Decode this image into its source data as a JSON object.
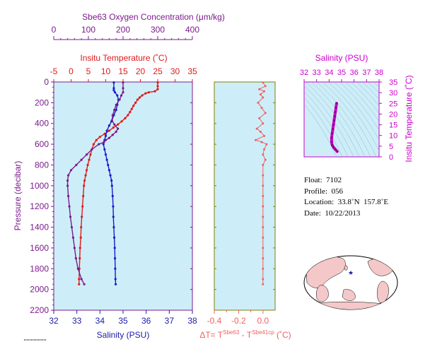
{
  "chart_data": [
    {
      "type": "line",
      "panel": "profile",
      "y_axis": {
        "label": "Pressure (decibar)",
        "lim": [
          0,
          2200
        ],
        "ticks": [
          0,
          200,
          400,
          600,
          800,
          1000,
          1200,
          1400,
          1600,
          1800,
          2000,
          2200
        ],
        "inverted": true
      },
      "oxygen_axis": {
        "label": "Sbe63 Oxygen Concentration (μm/kg)",
        "lim": [
          0,
          400
        ],
        "ticks": [
          0,
          100,
          200,
          300,
          400
        ],
        "color": "#7b1a8c"
      },
      "temperature_axis": {
        "label": "Insitu Temperature (˚C)",
        "lim": [
          -5,
          35
        ],
        "ticks": [
          -5,
          0,
          5,
          10,
          15,
          20,
          25,
          30,
          35
        ],
        "color": "#e01a1a"
      },
      "salinity_axis": {
        "label": "Salinity (PSU)",
        "lim": [
          32,
          38
        ],
        "ticks": [
          32,
          33,
          34,
          35,
          36,
          37,
          38
        ],
        "color": "#1a1aaa"
      },
      "background": "#cdeef8",
      "series": [
        {
          "variable": "temperature",
          "color": "#e01a1a",
          "points": [
            [
              25.0,
              5
            ],
            [
              25.0,
              40
            ],
            [
              25.0,
              70
            ],
            [
              24.2,
              90
            ],
            [
              22.4,
              100
            ],
            [
              21.5,
              110
            ],
            [
              20.5,
              130
            ],
            [
              19.8,
              150
            ],
            [
              19.2,
              170
            ],
            [
              18.6,
              200
            ],
            [
              18.0,
              230
            ],
            [
              17.5,
              260
            ],
            [
              17.0,
              290
            ],
            [
              16.4,
              320
            ],
            [
              15.6,
              350
            ],
            [
              14.6,
              380
            ],
            [
              13.5,
              410
            ],
            [
              12.2,
              440
            ],
            [
              11.0,
              470
            ],
            [
              9.7,
              500
            ],
            [
              8.3,
              530
            ],
            [
              7.3,
              560
            ],
            [
              6.5,
              600
            ],
            [
              6.0,
              650
            ],
            [
              5.6,
              700
            ],
            [
              5.2,
              750
            ],
            [
              4.8,
              800
            ],
            [
              4.5,
              850
            ],
            [
              4.2,
              900
            ],
            [
              3.9,
              950
            ],
            [
              3.7,
              1000
            ],
            [
              3.5,
              1100
            ],
            [
              3.3,
              1200
            ],
            [
              3.1,
              1300
            ],
            [
              2.9,
              1400
            ],
            [
              2.8,
              1500
            ],
            [
              2.6,
              1600
            ],
            [
              2.5,
              1700
            ],
            [
              2.4,
              1800
            ],
            [
              2.3,
              1900
            ],
            [
              2.3,
              1950
            ]
          ]
        },
        {
          "variable": "salinity",
          "color": "#1a1acc",
          "points": [
            [
              34.6,
              5
            ],
            [
              34.6,
              60
            ],
            [
              34.6,
              80
            ],
            [
              34.65,
              100
            ],
            [
              34.75,
              130
            ],
            [
              34.8,
              170
            ],
            [
              34.75,
              220
            ],
            [
              34.7,
              270
            ],
            [
              34.6,
              320
            ],
            [
              34.5,
              380
            ],
            [
              34.4,
              420
            ],
            [
              34.3,
              470
            ],
            [
              34.25,
              520
            ],
            [
              34.2,
              560
            ],
            [
              34.15,
              600
            ],
            [
              34.2,
              650
            ],
            [
              34.25,
              700
            ],
            [
              34.3,
              750
            ],
            [
              34.35,
              800
            ],
            [
              34.4,
              850
            ],
            [
              34.45,
              900
            ],
            [
              34.5,
              950
            ],
            [
              34.52,
              1000
            ],
            [
              34.55,
              1100
            ],
            [
              34.57,
              1200
            ],
            [
              34.58,
              1300
            ],
            [
              34.6,
              1400
            ],
            [
              34.62,
              1500
            ],
            [
              34.64,
              1600
            ],
            [
              34.65,
              1700
            ],
            [
              34.66,
              1800
            ],
            [
              34.67,
              1900
            ],
            [
              34.68,
              1950
            ]
          ]
        },
        {
          "variable": "oxygen",
          "color": "#7b1a8c",
          "points": [
            [
              200,
              5
            ],
            [
              200,
              60
            ],
            [
              200,
              100
            ],
            [
              195,
              130
            ],
            [
              190,
              170
            ],
            [
              180,
              220
            ],
            [
              175,
              270
            ],
            [
              170,
              320
            ],
            [
              168,
              370
            ],
            [
              175,
              410
            ],
            [
              185,
              450
            ],
            [
              180,
              480
            ],
            [
              170,
              510
            ],
            [
              160,
              540
            ],
            [
              150,
              560
            ],
            [
              145,
              580
            ],
            [
              130,
              600
            ],
            [
              110,
              650
            ],
            [
              95,
              700
            ],
            [
              80,
              750
            ],
            [
              65,
              800
            ],
            [
              50,
              850
            ],
            [
              42,
              900
            ],
            [
              40,
              950
            ],
            [
              40,
              1000
            ],
            [
              42,
              1100
            ],
            [
              45,
              1200
            ],
            [
              48,
              1300
            ],
            [
              52,
              1400
            ],
            [
              56,
              1500
            ],
            [
              60,
              1600
            ],
            [
              64,
              1700
            ],
            [
              70,
              1800
            ],
            [
              80,
              1900
            ],
            [
              88,
              1950
            ]
          ]
        }
      ]
    },
    {
      "type": "line",
      "panel": "delta",
      "xlabel": "ΔT= T^Sbe63 - T^Sbe41cp (˚C)",
      "xlabel_parts": {
        "main": "ΔT= T",
        "sup1": "Sbe63",
        "mid": " - T",
        "sup2": "Sbe41cp",
        "end": " (˚C)"
      },
      "xlim": [
        -0.4,
        0.1
      ],
      "xticks": [
        -0.4,
        -0.2,
        0.0
      ],
      "xticklabels": [
        "-0.4",
        "-0.2",
        "0.0"
      ],
      "color": "#f06060",
      "axis_color": "#808000",
      "points": [
        [
          0.0,
          5
        ],
        [
          0.02,
          40
        ],
        [
          -0.03,
          70
        ],
        [
          0.01,
          90
        ],
        [
          -0.02,
          120
        ],
        [
          0.0,
          150
        ],
        [
          -0.04,
          200
        ],
        [
          -0.01,
          250
        ],
        [
          0.02,
          300
        ],
        [
          -0.03,
          350
        ],
        [
          0.0,
          400
        ],
        [
          -0.05,
          450
        ],
        [
          -0.02,
          480
        ],
        [
          0.01,
          520
        ],
        [
          -0.06,
          560
        ],
        [
          -0.01,
          580
        ],
        [
          0.03,
          600
        ],
        [
          0.01,
          650
        ],
        [
          0.0,
          700
        ],
        [
          0.02,
          750
        ],
        [
          0.0,
          800
        ],
        [
          0.0,
          900
        ],
        [
          0.0,
          1000
        ],
        [
          0.0,
          1100
        ],
        [
          0.0,
          1200
        ],
        [
          0.0,
          1300
        ],
        [
          0.0,
          1400
        ],
        [
          0.0,
          1500
        ],
        [
          0.0,
          1600
        ],
        [
          0.0,
          1700
        ],
        [
          0.0,
          1800
        ],
        [
          0.0,
          1900
        ],
        [
          0.0,
          1950
        ]
      ]
    },
    {
      "type": "scatter",
      "panel": "ts",
      "xlabel": "Salinity (PSU)",
      "ylabel": "Insitu Temperature (˚C)",
      "xlim": [
        32,
        38
      ],
      "ylim": [
        0,
        35
      ],
      "xticks": [
        32,
        33,
        34,
        35,
        36,
        37,
        38
      ],
      "yticks": [
        0,
        5,
        10,
        15,
        20,
        25,
        30,
        35
      ],
      "color": "#cc00cc",
      "points": [
        [
          34.6,
          25
        ],
        [
          34.55,
          23
        ],
        [
          34.5,
          21
        ],
        [
          34.45,
          19
        ],
        [
          34.4,
          17
        ],
        [
          34.35,
          15
        ],
        [
          34.3,
          13
        ],
        [
          34.25,
          11
        ],
        [
          34.2,
          9
        ],
        [
          34.2,
          7
        ],
        [
          34.25,
          5.5
        ],
        [
          34.35,
          4.5
        ],
        [
          34.5,
          3.5
        ],
        [
          34.65,
          2.5
        ]
      ]
    }
  ],
  "float_info": {
    "float": "Float:  7102",
    "profile": "Profile:  056",
    "location": "Location:  33.8˚N  157.8˚E",
    "date": "Date:  10/22/2013"
  },
  "map": {
    "land_color": "#f4c8c8",
    "ocean_color": "#ffffff",
    "marker_color": "#1a1aaa"
  }
}
